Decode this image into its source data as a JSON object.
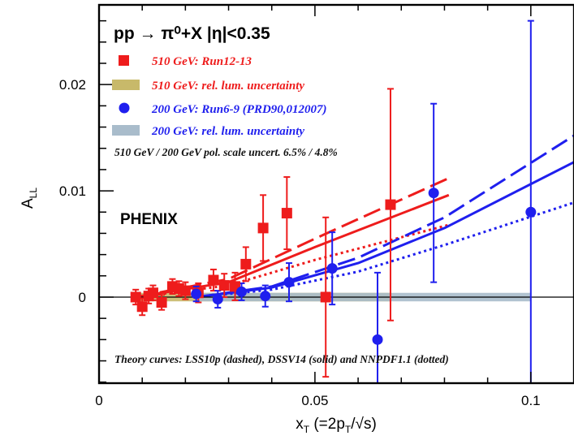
{
  "chart_data": {
    "type": "scatter",
    "ylabel_main": "A",
    "ylabel_sub": "LL",
    "xlabel": "x",
    "xlabel_sub": "T",
    "xlabel_rest": " (=2p",
    "xlabel_rest_sub": "T",
    "xlabel_tail": "/√s)",
    "process_label": "pp → π⁰+X  |η|<0.35",
    "experiment_label": "PHENIX",
    "scale_uncert_note": "510 GeV / 200 GeV pol. scale uncert. 6.5% / 4.8%",
    "theory_note": "Theory curves: LSS10p (dashed), DSSV14 (solid) and NNPDF1.1 (dotted)",
    "xlim": [
      0,
      0.11
    ],
    "ylim": [
      -0.0081,
      0.0275
    ],
    "xticks": [
      {
        "value": 0,
        "label": "0"
      },
      {
        "value": 0.05,
        "label": "0.05"
      },
      {
        "value": 0.1,
        "label": "0.1"
      }
    ],
    "yticks": [
      {
        "value": 0,
        "label": "0"
      },
      {
        "value": 0.01,
        "label": "0.01"
      },
      {
        "value": 0.02,
        "label": "0.02"
      }
    ],
    "series": [
      {
        "name": "510 GeV: Run12-13",
        "color": "#ee1c1c",
        "marker": "square",
        "points": [
          {
            "x": 0.0085,
            "y": 0.0,
            "err": 0.0007
          },
          {
            "x": 0.01,
            "y": -0.0009,
            "err": 0.0008
          },
          {
            "x": 0.0115,
            "y": 0.0001,
            "err": 0.0007
          },
          {
            "x": 0.0125,
            "y": 0.0004,
            "err": 0.0007
          },
          {
            "x": 0.0145,
            "y": -0.0005,
            "err": 0.0007
          },
          {
            "x": 0.017,
            "y": 0.001,
            "err": 0.0007
          },
          {
            "x": 0.0185,
            "y": 0.0008,
            "err": 0.0007
          },
          {
            "x": 0.02,
            "y": 0.0006,
            "err": 0.0008
          },
          {
            "x": 0.023,
            "y": 0.0004,
            "err": 0.0009
          },
          {
            "x": 0.0265,
            "y": 0.0016,
            "err": 0.001
          },
          {
            "x": 0.029,
            "y": 0.0011,
            "err": 0.0011
          },
          {
            "x": 0.0315,
            "y": 0.001,
            "err": 0.0013
          },
          {
            "x": 0.034,
            "y": 0.0031,
            "err": 0.0016
          },
          {
            "x": 0.038,
            "y": 0.0065,
            "err": 0.0031
          },
          {
            "x": 0.0435,
            "y": 0.0079,
            "err": 0.0034
          },
          {
            "x": 0.0525,
            "y": 0.0,
            "err": 0.0075
          },
          {
            "x": 0.0675,
            "y": 0.0087,
            "err": 0.0109
          }
        ]
      },
      {
        "name": "200 GeV: Run6-9 (PRD90,012007)",
        "color": "#1f1fee",
        "marker": "circle",
        "points": [
          {
            "x": 0.0225,
            "y": 0.0003,
            "err": 0.0007
          },
          {
            "x": 0.0275,
            "y": -0.0002,
            "err": 0.0008
          },
          {
            "x": 0.033,
            "y": 0.0005,
            "err": 0.0008
          },
          {
            "x": 0.0385,
            "y": 0.0001,
            "err": 0.001
          },
          {
            "x": 0.044,
            "y": 0.0014,
            "err": 0.0018
          },
          {
            "x": 0.054,
            "y": 0.0027,
            "err": 0.0034
          },
          {
            "x": 0.0645,
            "y": -0.004,
            "err": 0.0063
          },
          {
            "x": 0.0775,
            "y": 0.0098,
            "err": 0.0084
          },
          {
            "x": 0.1,
            "y": 0.008,
            "err": 0.018
          }
        ]
      }
    ],
    "lum_bands": [
      {
        "name": "510 GeV: rel. lum. uncertainty",
        "color": "#c8b96a",
        "x0": 0.0085,
        "x1": 0.0675,
        "y0": -0.0004,
        "y1": 0.0004
      },
      {
        "name": "200 GeV: rel. lum. uncertainty",
        "color": "#a9bccb",
        "x0": 0.0225,
        "x1": 0.1,
        "y0": -0.0004,
        "y1": 0.0004
      }
    ],
    "theory_curves": [
      {
        "set": "510 GeV",
        "style": "dashed",
        "color": "#ee1c1c",
        "x": [
          0.0085,
          0.03,
          0.05,
          0.081
        ],
        "y": [
          0.0,
          0.0017,
          0.0055,
          0.0112
        ]
      },
      {
        "set": "510 GeV",
        "style": "solid",
        "color": "#ee1c1c",
        "x": [
          0.0085,
          0.03,
          0.05,
          0.081
        ],
        "y": [
          0.0,
          0.0014,
          0.0047,
          0.0096
        ]
      },
      {
        "set": "510 GeV",
        "style": "dotted",
        "color": "#ee1c1c",
        "x": [
          0.0085,
          0.03,
          0.05,
          0.081
        ],
        "y": [
          0.0,
          0.0011,
          0.0035,
          0.0068
        ]
      },
      {
        "set": "200 GeV",
        "style": "dashed",
        "color": "#1f1fee",
        "x": [
          0.0225,
          0.04,
          0.06,
          0.08,
          0.11
        ],
        "y": [
          0.0,
          0.001,
          0.0037,
          0.0075,
          0.0152
        ]
      },
      {
        "set": "200 GeV",
        "style": "solid",
        "color": "#1f1fee",
        "x": [
          0.0225,
          0.04,
          0.06,
          0.08,
          0.11
        ],
        "y": [
          0.0,
          0.0009,
          0.0032,
          0.0065,
          0.0127
        ]
      },
      {
        "set": "200 GeV",
        "style": "dotted",
        "color": "#1f1fee",
        "x": [
          0.0225,
          0.04,
          0.06,
          0.08,
          0.11
        ],
        "y": [
          0.0,
          0.0007,
          0.0024,
          0.0049,
          0.0089
        ]
      }
    ],
    "grid": false,
    "legend_placement": "top-left"
  }
}
